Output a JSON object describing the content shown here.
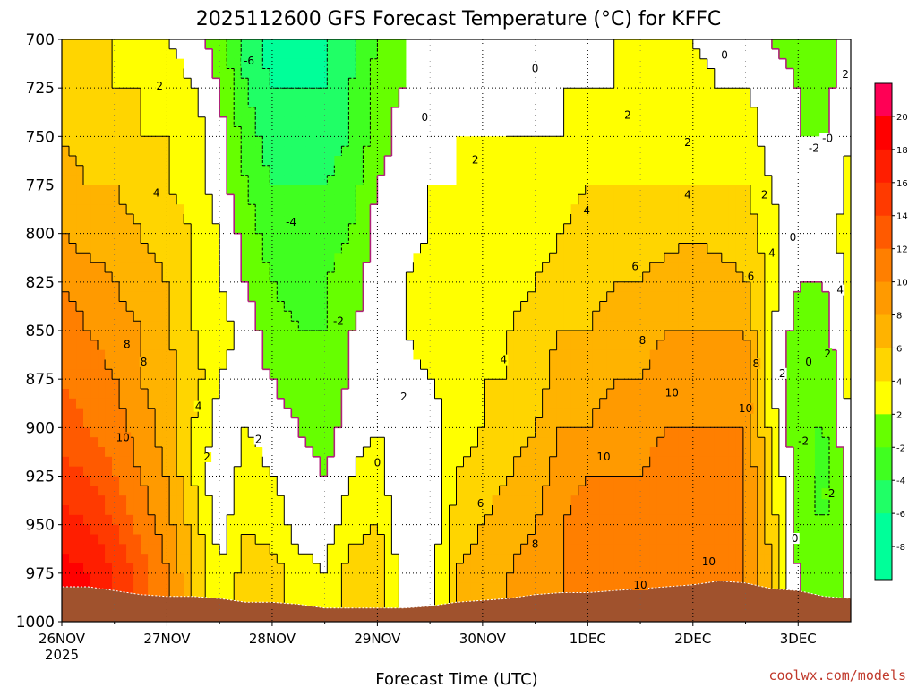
{
  "title": "2025112600 GFS Forecast Temperature (°C) for KFFC",
  "credit": "coolwx.com/models",
  "chart_data": {
    "type": "heatmap",
    "title": "2025112600 GFS Forecast Temperature (°C) for KFFC",
    "xlabel": "Forecast Time (UTC)",
    "ylabel": "",
    "y_scale": "pressure (hPa), inverted",
    "ylim": [
      1000,
      700
    ],
    "yticks": [
      "700",
      "725",
      "750",
      "775",
      "800",
      "825",
      "850",
      "875",
      "900",
      "925",
      "950",
      "975",
      "1000"
    ],
    "x_start": "26NOV 2025 00Z",
    "x_end": "3DEC 2025 12Z",
    "xticks": [
      {
        "label": "26NOV",
        "sub": "2025"
      },
      {
        "label": "27NOV",
        "sub": ""
      },
      {
        "label": "28NOV",
        "sub": ""
      },
      {
        "label": "29NOV",
        "sub": ""
      },
      {
        "label": "30NOV",
        "sub": ""
      },
      {
        "label": "1DEC",
        "sub": ""
      },
      {
        "label": "2DEC",
        "sub": ""
      },
      {
        "label": "3DEC",
        "sub": ""
      }
    ],
    "grid": true,
    "colorbar": {
      "levels": [
        -10,
        -8,
        -6,
        -4,
        -2,
        2,
        4,
        6,
        8,
        10,
        12,
        14,
        16,
        18,
        20,
        22
      ],
      "tick_labels": [
        "-8",
        "-6",
        "-4",
        "-2",
        "2",
        "4",
        "6",
        "8",
        "10",
        "12",
        "14",
        "16",
        "18",
        "20"
      ],
      "colors": {
        "-10": "#00ff99",
        "-8": "#00ff99",
        "-6": "#20ff66",
        "-4": "#40ff20",
        "-2": "#66ff00",
        "0": "#ffffff",
        "2": "#ffff00",
        "4": "#ffd500",
        "6": "#ffb300",
        "8": "#ff9a00",
        "10": "#ff7f00",
        "12": "#ff5a00",
        "14": "#ff3a00",
        "16": "#ff1e00",
        "18": "#ff0000",
        "20": "#ff0055"
      }
    },
    "contour_levels": [
      -6,
      -4,
      -2,
      0,
      2,
      4,
      6,
      8,
      10
    ],
    "time_days": [
      0,
      0.25,
      0.5,
      0.75,
      1,
      1.25,
      1.5,
      1.75,
      2,
      2.25,
      2.5,
      2.75,
      3,
      3.25,
      3.5,
      3.75,
      4,
      4.25,
      4.5,
      4.75,
      5,
      5.25,
      5.5,
      5.75,
      6,
      6.25,
      6.5,
      6.75,
      7,
      7.25,
      7.5
    ],
    "surface_pressure": [
      982,
      982,
      984,
      986,
      987,
      987,
      988,
      990,
      990,
      991,
      993,
      993,
      993,
      993,
      992,
      990,
      989,
      988,
      986,
      985,
      985,
      984,
      983,
      982,
      981,
      979,
      980,
      983,
      984,
      987,
      988
    ],
    "profiles": [
      {
        "t_day": 0,
        "temps_c": [
          5,
          5,
          6,
          7,
          8,
          10,
          11,
          12,
          13,
          15,
          17,
          19
        ]
      },
      {
        "t_day": 0.25,
        "temps_c": [
          5,
          5,
          5,
          6,
          7,
          9,
          10,
          11,
          12,
          14,
          16,
          18
        ]
      },
      {
        "t_day": 0.5,
        "temps_c": [
          4,
          4,
          5,
          6,
          7,
          8,
          9,
          10,
          11,
          12,
          14,
          16
        ]
      },
      {
        "t_day": 0.75,
        "temps_c": [
          3,
          4,
          4,
          5,
          6,
          7,
          8,
          8,
          9,
          10,
          11,
          13
        ]
      },
      {
        "t_day": 1,
        "temps_c": [
          2,
          3,
          4,
          4,
          5,
          6,
          6,
          7,
          7,
          8,
          9,
          10
        ]
      },
      {
        "t_day": 1.25,
        "temps_c": [
          1,
          2,
          3,
          3,
          4,
          4,
          4,
          5,
          4,
          4,
          5,
          6
        ]
      },
      {
        "t_day": 1.5,
        "temps_c": [
          -1,
          0,
          1,
          1,
          2,
          2,
          3,
          2,
          1,
          0,
          1,
          2
        ]
      },
      {
        "t_day": 1.75,
        "temps_c": [
          -5,
          -4,
          -3,
          -2,
          -1,
          0,
          1,
          1,
          2,
          3,
          4,
          5
        ]
      },
      {
        "t_day": 2,
        "temps_c": [
          -7,
          -6,
          -5,
          -4,
          -3,
          -2,
          -1,
          0,
          1,
          2,
          3,
          5
        ]
      },
      {
        "t_day": 2.25,
        "temps_c": [
          -7,
          -6,
          -5,
          -4,
          -3,
          -3,
          -2,
          -1,
          0,
          1,
          1,
          3
        ]
      },
      {
        "t_day": 2.5,
        "temps_c": [
          -6,
          -6,
          -5,
          -4,
          -3,
          -2,
          -2,
          -1,
          -1,
          0,
          1,
          2
        ]
      },
      {
        "t_day": 2.75,
        "temps_c": [
          -5,
          -4,
          -4,
          -3,
          -2,
          -1,
          0,
          0,
          1,
          2,
          3,
          5
        ]
      },
      {
        "t_day": 3,
        "temps_c": [
          -2,
          -1,
          -1,
          0,
          1,
          1,
          1,
          2,
          2,
          3,
          4,
          6
        ]
      },
      {
        "t_day": 3.25,
        "temps_c": [
          0,
          0,
          1,
          1,
          1,
          2,
          2,
          1,
          1,
          0,
          0,
          1
        ]
      },
      {
        "t_day": 3.5,
        "temps_c": [
          0,
          0,
          1,
          2,
          2,
          3,
          3,
          2,
          1,
          0,
          0,
          1
        ]
      },
      {
        "t_day": 3.75,
        "temps_c": [
          0,
          1,
          2,
          2,
          3,
          3,
          3,
          3,
          3,
          4,
          5,
          6
        ]
      },
      {
        "t_day": 4,
        "temps_c": [
          0,
          1,
          2,
          2,
          3,
          3,
          3,
          4,
          4,
          5,
          6,
          7
        ]
      },
      {
        "t_day": 4.25,
        "temps_c": [
          1,
          1,
          2,
          2,
          3,
          3,
          4,
          4,
          5,
          6,
          7,
          8
        ]
      },
      {
        "t_day": 4.5,
        "temps_c": [
          1,
          1,
          2,
          3,
          3,
          4,
          5,
          5,
          6,
          7,
          8,
          9
        ]
      },
      {
        "t_day": 4.75,
        "temps_c": [
          1,
          2,
          2,
          3,
          4,
          5,
          6,
          7,
          8,
          9,
          10,
          10
        ]
      },
      {
        "t_day": 5,
        "temps_c": [
          1,
          2,
          3,
          4,
          5,
          5,
          6,
          7,
          8,
          10,
          11,
          11
        ]
      },
      {
        "t_day": 5.25,
        "temps_c": [
          2,
          2,
          3,
          4,
          5,
          6,
          7,
          8,
          9,
          10,
          11,
          11
        ]
      },
      {
        "t_day": 5.5,
        "temps_c": [
          2,
          3,
          3,
          4,
          5,
          6,
          7,
          8,
          9,
          10,
          11,
          11
        ]
      },
      {
        "t_day": 5.75,
        "temps_c": [
          2,
          3,
          3,
          4,
          5,
          7,
          8,
          9,
          10,
          11,
          11,
          11
        ]
      },
      {
        "t_day": 6,
        "temps_c": [
          2,
          3,
          3,
          4,
          6,
          7,
          8,
          9,
          10,
          11,
          11,
          11
        ]
      },
      {
        "t_day": 6.25,
        "temps_c": [
          1,
          2,
          3,
          4,
          5,
          7,
          8,
          9,
          10,
          11,
          11,
          11
        ]
      },
      {
        "t_day": 6.5,
        "temps_c": [
          1,
          2,
          3,
          4,
          5,
          6,
          8,
          9,
          10,
          10,
          10,
          10
        ]
      },
      {
        "t_day": 6.75,
        "temps_c": [
          0,
          1,
          1,
          2,
          3,
          3,
          2,
          2,
          3,
          4,
          5,
          6
        ]
      },
      {
        "t_day": 7,
        "temps_c": [
          -1,
          0,
          0,
          0,
          0,
          0,
          -1,
          -1,
          -2,
          -1,
          -1,
          0
        ]
      },
      {
        "t_day": 7.25,
        "temps_c": [
          -1,
          -1,
          0,
          0,
          1,
          0,
          -1,
          -2,
          -2,
          -3,
          -2,
          -2
        ]
      },
      {
        "t_day": 7.5,
        "temps_c": [
          2,
          2,
          2,
          3,
          3,
          3,
          3,
          3,
          2,
          1,
          1,
          1
        ]
      }
    ],
    "profile_pressure_levels": [
      700,
      725,
      750,
      775,
      800,
      825,
      850,
      875,
      900,
      925,
      950,
      975
    ],
    "contour_labels_shown": [
      {
        "text": "2",
        "t_day": 0.93,
        "p": 725
      },
      {
        "text": "4",
        "t_day": 0.9,
        "p": 780
      },
      {
        "text": "8",
        "t_day": 0.62,
        "p": 858
      },
      {
        "text": "8",
        "t_day": 0.78,
        "p": 867
      },
      {
        "text": "10",
        "t_day": 0.58,
        "p": 906
      },
      {
        "text": "4",
        "t_day": 1.3,
        "p": 890
      },
      {
        "text": "2",
        "t_day": 1.38,
        "p": 916
      },
      {
        "text": "-6",
        "t_day": 1.78,
        "p": 712
      },
      {
        "text": "-4",
        "t_day": 2.18,
        "p": 795
      },
      {
        "text": "2",
        "t_day": 1.87,
        "p": 907
      },
      {
        "text": "-2",
        "t_day": 2.63,
        "p": 846
      },
      {
        "text": "0",
        "t_day": 3.0,
        "p": 919
      },
      {
        "text": "2",
        "t_day": 3.25,
        "p": 885
      },
      {
        "text": "0",
        "t_day": 3.45,
        "p": 741
      },
      {
        "text": "0",
        "t_day": 4.5,
        "p": 716
      },
      {
        "text": "2",
        "t_day": 3.93,
        "p": 763
      },
      {
        "text": "4",
        "t_day": 4.2,
        "p": 866
      },
      {
        "text": "6",
        "t_day": 3.98,
        "p": 940
      },
      {
        "text": "8",
        "t_day": 4.5,
        "p": 961
      },
      {
        "text": "4",
        "t_day": 4.99,
        "p": 789
      },
      {
        "text": "2",
        "t_day": 5.38,
        "p": 740
      },
      {
        "text": "6",
        "t_day": 5.45,
        "p": 818
      },
      {
        "text": "8",
        "t_day": 5.52,
        "p": 856
      },
      {
        "text": "10",
        "t_day": 5.15,
        "p": 916
      },
      {
        "text": "10",
        "t_day": 5.8,
        "p": 883
      },
      {
        "text": "10",
        "t_day": 5.5,
        "p": 982
      },
      {
        "text": "10",
        "t_day": 6.15,
        "p": 970
      },
      {
        "text": "10",
        "t_day": 6.5,
        "p": 891
      },
      {
        "text": "2",
        "t_day": 5.95,
        "p": 754
      },
      {
        "text": "4",
        "t_day": 5.95,
        "p": 781
      },
      {
        "text": "0",
        "t_day": 6.3,
        "p": 709
      },
      {
        "text": "2",
        "t_day": 6.68,
        "p": 781
      },
      {
        "text": "4",
        "t_day": 6.75,
        "p": 811
      },
      {
        "text": "6",
        "t_day": 6.55,
        "p": 823
      },
      {
        "text": "8",
        "t_day": 6.6,
        "p": 868
      },
      {
        "text": "2",
        "t_day": 6.85,
        "p": 873
      },
      {
        "text": "0",
        "t_day": 6.95,
        "p": 803
      },
      {
        "text": "0",
        "t_day": 7.1,
        "p": 867
      },
      {
        "text": "2",
        "t_day": 7.28,
        "p": 863
      },
      {
        "text": "-2",
        "t_day": 7.05,
        "p": 908
      },
      {
        "text": "-2",
        "t_day": 7.3,
        "p": 935
      },
      {
        "text": "0",
        "t_day": 6.97,
        "p": 958
      },
      {
        "text": "-2",
        "t_day": 7.15,
        "p": 757
      },
      {
        "text": "-0",
        "t_day": 7.28,
        "p": 752
      },
      {
        "text": "2",
        "t_day": 7.45,
        "p": 719
      },
      {
        "text": "4",
        "t_day": 7.4,
        "p": 830
      }
    ]
  }
}
